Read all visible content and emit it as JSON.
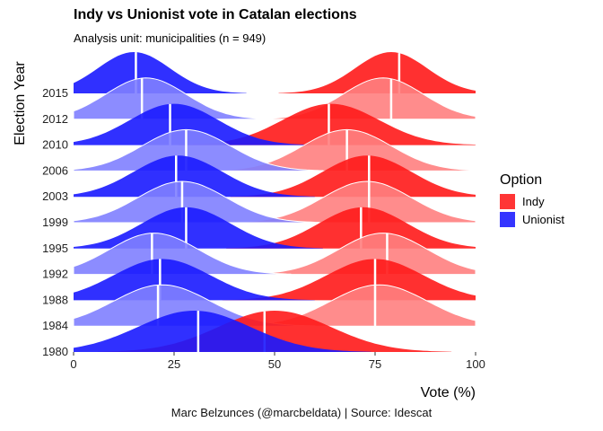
{
  "title": "Indy vs Unionist vote in Catalan elections",
  "subtitle": "Analysis unit: municipalities (n = 949)",
  "caption": "Marc Belzunces (@marcbeldata) | Source: Idescat",
  "legend": {
    "title": "Option",
    "items": [
      {
        "label": "Indy",
        "color": "#ff1a1a"
      },
      {
        "label": "Unionist",
        "color": "#1a1aff"
      }
    ]
  },
  "colors": {
    "indy_dark": "#ff1a1a",
    "indy_light": "#ff8080",
    "unionist_dark": "#1a1aff",
    "unionist_light": "#8080ff",
    "median_line": "#ffffff"
  },
  "chart_data": {
    "type": "ridgeline",
    "xlabel": "Vote (%)",
    "ylabel": "Election Year",
    "xlim": [
      0,
      100
    ],
    "xticks": [
      0,
      25,
      50,
      75,
      100
    ],
    "series_names": [
      "Indy",
      "Unionist"
    ],
    "years": [
      {
        "year": "2015",
        "indy": {
          "mode": 79,
          "sd": 9,
          "median": 81
        },
        "unionist": {
          "mode": 15,
          "sd": 9,
          "median": 15.5
        }
      },
      {
        "year": "2012",
        "indy": {
          "mode": 77,
          "sd": 10,
          "median": 79
        },
        "unionist": {
          "mode": 18,
          "sd": 10,
          "median": 17
        }
      },
      {
        "year": "2010",
        "indy": {
          "mode": 64,
          "sd": 12,
          "median": 63.5
        },
        "unionist": {
          "mode": 25,
          "sd": 11,
          "median": 24
        }
      },
      {
        "year": "2006",
        "indy": {
          "mode": 68,
          "sd": 11,
          "median": 68
        },
        "unionist": {
          "mode": 28,
          "sd": 11,
          "median": 28
        }
      },
      {
        "year": "2003",
        "indy": {
          "mode": 73,
          "sd": 11,
          "median": 73.5
        },
        "unionist": {
          "mode": 26,
          "sd": 11,
          "median": 25.5
        }
      },
      {
        "year": "1999",
        "indy": {
          "mode": 73,
          "sd": 11,
          "median": 73.5
        },
        "unionist": {
          "mode": 27,
          "sd": 11,
          "median": 27
        }
      },
      {
        "year": "1995",
        "indy": {
          "mode": 72,
          "sd": 11,
          "median": 71.5
        },
        "unionist": {
          "mode": 28,
          "sd": 11,
          "median": 28
        }
      },
      {
        "year": "1992",
        "indy": {
          "mode": 77,
          "sd": 11,
          "median": 78
        },
        "unionist": {
          "mode": 20,
          "sd": 11,
          "median": 19.5
        }
      },
      {
        "year": "1988",
        "indy": {
          "mode": 75,
          "sd": 12,
          "median": 75
        },
        "unionist": {
          "mode": 22,
          "sd": 12,
          "median": 21.5
        }
      },
      {
        "year": "1984",
        "indy": {
          "mode": 76,
          "sd": 12,
          "median": 75
        },
        "unionist": {
          "mode": 22,
          "sd": 12,
          "median": 21
        }
      },
      {
        "year": "1980",
        "indy": {
          "mode": 50,
          "sd": 14,
          "median": 47.5
        },
        "unionist": {
          "mode": 30,
          "sd": 14,
          "median": 31
        }
      }
    ]
  }
}
